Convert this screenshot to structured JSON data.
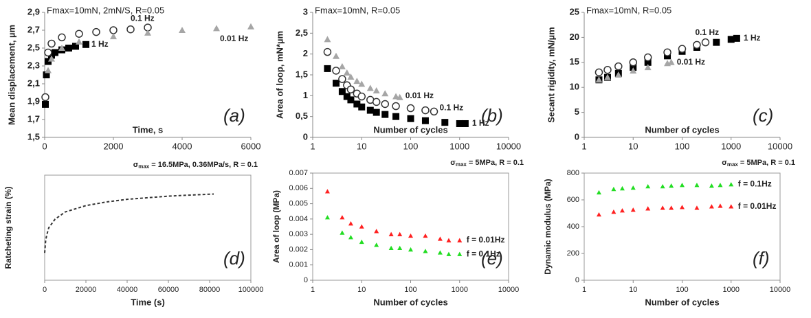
{
  "chart_data": [
    {
      "type": "scatter",
      "title": "Fmax=10mN, 2mN/S, R=0.05",
      "xlabel": "Time, s",
      "ylabel": "Mean displacement, µm",
      "annotation": "(a)",
      "xlim": [
        0,
        6000
      ],
      "xticks": [
        0,
        2000,
        4000,
        6000
      ],
      "ylim": [
        1.5,
        2.9
      ],
      "yticks": [
        {
          "value": 1.5,
          "label": "1,5"
        },
        {
          "value": 1.7,
          "label": "1,7"
        },
        {
          "value": 1.9,
          "label": "1,9"
        },
        {
          "value": 2.1,
          "label": "2,1"
        },
        {
          "value": 2.3,
          "label": "2,3"
        },
        {
          "value": 2.5,
          "label": "2,5"
        },
        {
          "value": 2.7,
          "label": "2,7"
        },
        {
          "value": 2.9,
          "label": "2,9"
        }
      ],
      "series": [
        {
          "name": "1 Hz",
          "color": "#000000",
          "marker": "square",
          "x": [
            20,
            50,
            100,
            200,
            300,
            500,
            700,
            900,
            1200
          ],
          "values": [
            1.87,
            2.2,
            2.35,
            2.42,
            2.45,
            2.48,
            2.5,
            2.52,
            2.54
          ]
        },
        {
          "name": "0.1 Hz",
          "color": "#333333",
          "marker": "circle",
          "x": [
            20,
            100,
            200,
            500,
            1000,
            1500,
            2000,
            2500,
            3000
          ],
          "values": [
            1.95,
            2.45,
            2.55,
            2.62,
            2.66,
            2.68,
            2.7,
            2.71,
            2.73
          ]
        },
        {
          "name": "0.01 Hz",
          "color": "#a6a6a6",
          "marker": "triangle",
          "x": [
            100,
            200,
            500,
            1000,
            2000,
            3000,
            4000,
            5000,
            6000
          ],
          "values": [
            2.25,
            2.38,
            2.5,
            2.57,
            2.63,
            2.67,
            2.7,
            2.72,
            2.74
          ]
        }
      ]
    },
    {
      "type": "scatter",
      "title": "Fmax=10mN, R=0.05",
      "xlabel": "Number of cycles",
      "ylabel": "Area of loop, mN*µm",
      "annotation": "(b)",
      "xscale": "log",
      "xlim": [
        1,
        10000
      ],
      "xticks": [
        1,
        10,
        100,
        1000,
        10000
      ],
      "ylim": [
        0,
        3
      ],
      "yticks": [
        0,
        {
          "value": 0.5,
          "label": "0,5"
        },
        1,
        {
          "value": 1.5,
          "label": "1,5"
        },
        2,
        {
          "value": 2.5,
          "label": "2,5"
        },
        3
      ],
      "series": [
        {
          "name": "1 Hz",
          "color": "#000000",
          "marker": "square",
          "x": [
            2,
            3,
            4,
            5,
            6,
            8,
            10,
            15,
            20,
            30,
            50,
            100,
            200,
            500,
            1000,
            1300
          ],
          "values": [
            1.65,
            1.3,
            1.1,
            0.98,
            0.9,
            0.8,
            0.73,
            0.65,
            0.6,
            0.55,
            0.5,
            0.45,
            0.4,
            0.36,
            0.33,
            0.33
          ]
        },
        {
          "name": "0.1 Hz",
          "color": "#333333",
          "marker": "circle",
          "x": [
            2,
            3,
            4,
            5,
            6,
            8,
            10,
            15,
            20,
            30,
            50,
            100,
            200,
            300
          ],
          "values": [
            2.05,
            1.6,
            1.4,
            1.25,
            1.15,
            1.05,
            0.98,
            0.9,
            0.85,
            0.8,
            0.75,
            0.7,
            0.65,
            0.62
          ]
        },
        {
          "name": "0.01 Hz",
          "color": "#a6a6a6",
          "marker": "triangle",
          "x": [
            2,
            3,
            4,
            5,
            6,
            8,
            10,
            15,
            20,
            30,
            50,
            60
          ],
          "values": [
            2.35,
            1.95,
            1.7,
            1.55,
            1.45,
            1.35,
            1.28,
            1.18,
            1.12,
            1.05,
            0.98,
            0.96
          ]
        }
      ]
    },
    {
      "type": "scatter",
      "title": "Fmax=10mN, R=0.05",
      "xlabel": "Number of cycles",
      "ylabel": "Secant rigidity, mN/µm",
      "annotation": "(c)",
      "xscale": "log",
      "xlim": [
        1,
        10000
      ],
      "xticks": [
        1,
        10,
        100,
        1000,
        10000
      ],
      "ylim": [
        0,
        25
      ],
      "yticks": [
        0,
        5,
        10,
        15,
        20,
        25
      ],
      "series": [
        {
          "name": "1 Hz",
          "color": "#000000",
          "marker": "square",
          "x": [
            2,
            3,
            5,
            10,
            20,
            50,
            100,
            200,
            500,
            1000,
            1300
          ],
          "values": [
            11.5,
            12,
            12.8,
            14,
            15,
            16.3,
            17.2,
            18,
            19,
            19.6,
            19.8
          ]
        },
        {
          "name": "0.1 Hz",
          "color": "#333333",
          "marker": "circle",
          "x": [
            2,
            3,
            5,
            10,
            20,
            50,
            100,
            200,
            300
          ],
          "values": [
            13,
            13.5,
            14.2,
            15,
            16,
            17,
            17.7,
            18.5,
            19
          ]
        },
        {
          "name": "0.01 Hz",
          "color": "#a6a6a6",
          "marker": "triangle",
          "x": [
            2,
            3,
            5,
            10,
            20,
            50,
            60
          ],
          "values": [
            11.5,
            12,
            12.5,
            13.3,
            14,
            14.8,
            15
          ]
        }
      ]
    },
    {
      "type": "line",
      "title": [
        "σ",
        "max",
        " = 16.5MPa, 0.36MPa/s, R = 0.1"
      ],
      "xlabel": "Time (s)",
      "ylabel": "Ratcheting strain (%)",
      "annotation": "(d)",
      "box": true,
      "xlim": [
        0,
        100000
      ],
      "xticks": [
        0,
        20000,
        40000,
        60000,
        80000,
        100000
      ],
      "ylim": [
        0,
        10
      ],
      "series": [
        {
          "color": "#333333",
          "dash": true,
          "x": [
            0,
            500,
            1000,
            2000,
            5000,
            10000,
            20000,
            30000,
            40000,
            50000,
            60000,
            70000,
            82000
          ],
          "values": [
            2.6,
            3.8,
            4.3,
            5,
            5.8,
            6.5,
            7.1,
            7.45,
            7.7,
            7.85,
            8,
            8.1,
            8.2
          ]
        }
      ]
    },
    {
      "type": "scatter",
      "title": [
        "σ",
        "max",
        " = 5MPa, R = 0.1"
      ],
      "xlabel": "Number of cycles",
      "ylabel": "Area of loop (MPa)",
      "annotation": "(e)",
      "xscale": "log",
      "box": true,
      "xlim": [
        1,
        10000
      ],
      "xticks": [
        1,
        10,
        100,
        1000,
        10000
      ],
      "ylim": [
        0,
        0.007
      ],
      "yticks": [
        0,
        0.001,
        0.002,
        0.003,
        0.004,
        0.005,
        0.006,
        0.007
      ],
      "series": [
        {
          "name": "f = 0.01Hz",
          "color": "#ff2020",
          "marker": "triangle",
          "x": [
            2,
            4,
            6,
            10,
            20,
            40,
            60,
            100,
            200,
            400,
            600,
            1000
          ],
          "values": [
            0.0058,
            0.0041,
            0.0037,
            0.0035,
            0.0032,
            0.003,
            0.003,
            0.0029,
            0.0029,
            0.0027,
            0.0026,
            0.0026
          ]
        },
        {
          "name": "f = 0.1Hz",
          "color": "#22dd22",
          "marker": "triangle",
          "x": [
            2,
            4,
            6,
            10,
            20,
            40,
            60,
            100,
            200,
            400,
            600,
            1000
          ],
          "values": [
            0.0041,
            0.0031,
            0.0028,
            0.0025,
            0.0023,
            0.0021,
            0.0021,
            0.002,
            0.0019,
            0.0018,
            0.0017,
            0.0017
          ]
        }
      ]
    },
    {
      "type": "scatter",
      "title": [
        "σ",
        "max",
        " = 5MPa, R = 0.1"
      ],
      "xlabel": "Number of cycles",
      "ylabel": "Dynamic modulus (MPa)",
      "annotation": "(f)",
      "xscale": "log",
      "box": true,
      "xlim": [
        1,
        10000
      ],
      "xticks": [
        1,
        10,
        100,
        1000,
        10000
      ],
      "ylim": [
        0,
        800
      ],
      "yticks": [
        0,
        200,
        400,
        600,
        800
      ],
      "series": [
        {
          "name": "f = 0.1Hz",
          "color": "#22dd22",
          "marker": "triangle",
          "x": [
            2,
            4,
            6,
            10,
            20,
            40,
            60,
            100,
            200,
            400,
            600,
            1000
          ],
          "values": [
            655,
            680,
            685,
            690,
            700,
            700,
            705,
            710,
            710,
            705,
            710,
            715
          ]
        },
        {
          "name": "f = 0.01Hz",
          "color": "#ff2020",
          "marker": "triangle",
          "x": [
            2,
            4,
            6,
            10,
            20,
            40,
            60,
            100,
            200,
            400,
            600,
            1000
          ],
          "values": [
            490,
            510,
            520,
            525,
            535,
            540,
            540,
            545,
            540,
            550,
            555,
            550
          ]
        }
      ]
    }
  ]
}
